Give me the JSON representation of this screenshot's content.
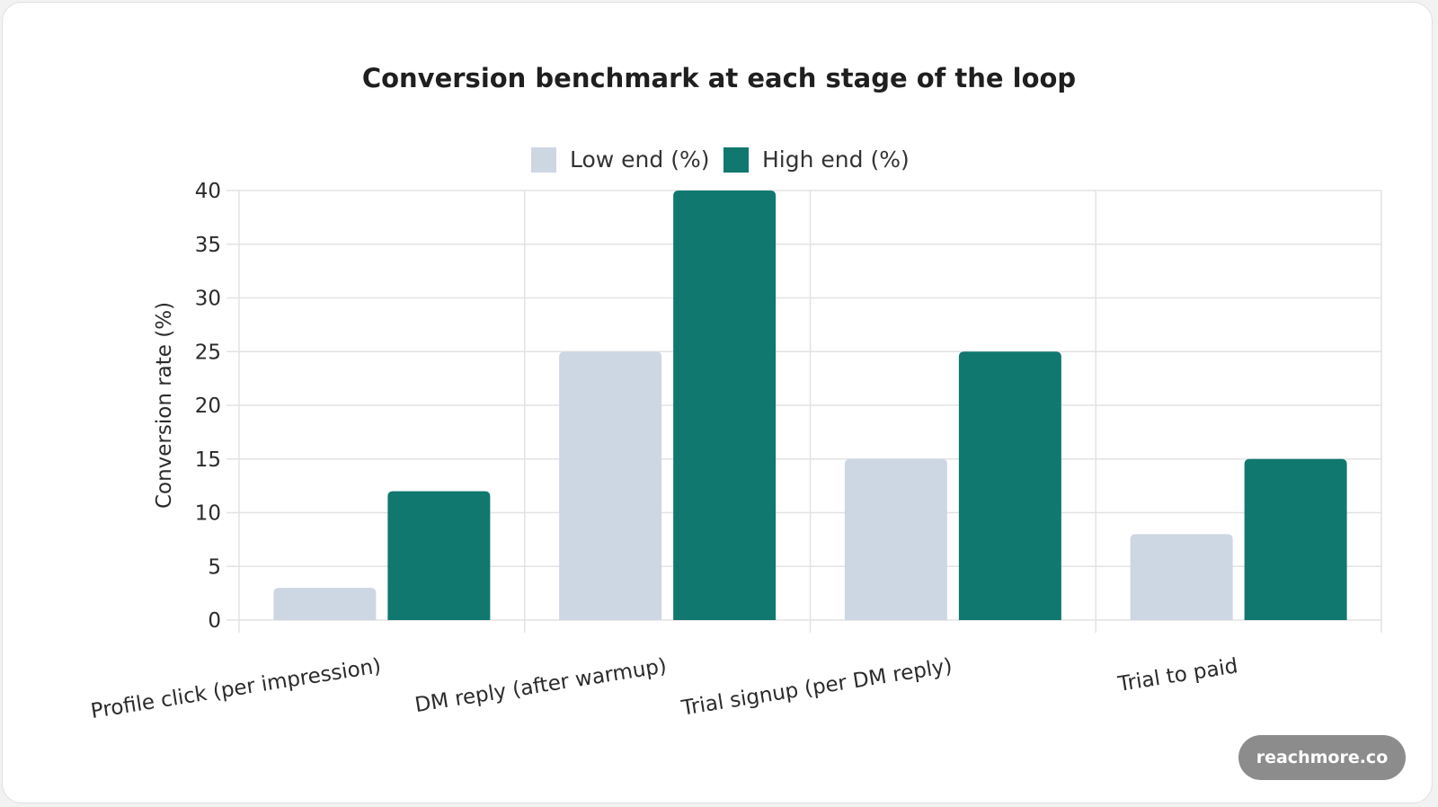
{
  "chart_data": {
    "type": "bar",
    "title": "Conversion benchmark at each stage of the loop",
    "ylabel": "Conversion rate (%)",
    "xlabel": "",
    "categories": [
      "Profile click (per impression)",
      "DM reply (after warmup)",
      "Trial signup (per DM reply)",
      "Trial to paid"
    ],
    "series": [
      {
        "name": "Low end (%)",
        "color": "#cdd7e3",
        "values": [
          3,
          25,
          15,
          8
        ]
      },
      {
        "name": "High end (%)",
        "color": "#10786f",
        "values": [
          12,
          40,
          25,
          15
        ]
      }
    ],
    "ylim": [
      0,
      40
    ],
    "yticks": [
      0,
      5,
      10,
      15,
      20,
      25,
      30,
      35,
      40
    ],
    "grid": true,
    "legend_position": "top-center"
  },
  "watermark": {
    "text": "reachmore.co"
  }
}
